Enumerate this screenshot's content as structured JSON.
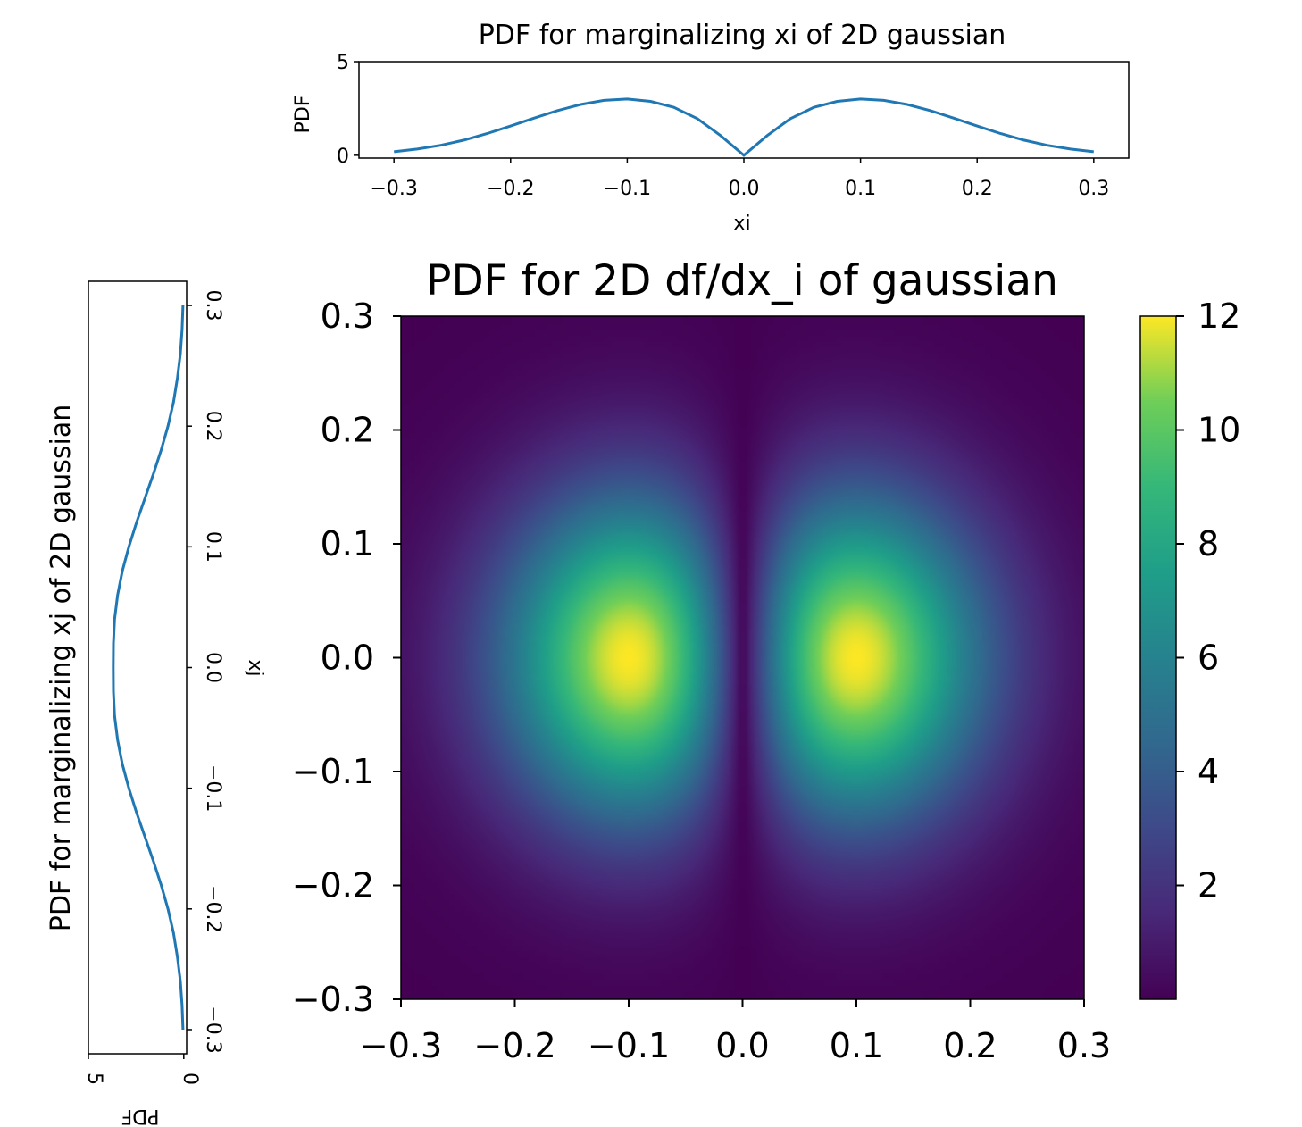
{
  "chart_data": [
    {
      "id": "top-marginal",
      "type": "line",
      "title": "PDF for marginalizing xi of 2D gaussian",
      "xlabel": "xi",
      "ylabel": "PDF",
      "xlim": [
        -0.33,
        0.33
      ],
      "ylim": [
        -0.15,
        5
      ],
      "xticks": [
        "−0.3",
        "−0.2",
        "−0.1",
        "0.0",
        "0.1",
        "0.2",
        "0.3"
      ],
      "yticks": [
        "0",
        "5"
      ],
      "series": [
        {
          "color": "#1f77b4",
          "x": [
            -0.3,
            -0.28,
            -0.26,
            -0.24,
            -0.22,
            -0.2,
            -0.18,
            -0.16,
            -0.14,
            -0.12,
            -0.1,
            -0.08,
            -0.06,
            -0.04,
            -0.02,
            0.0,
            0.02,
            0.04,
            0.06,
            0.08,
            0.1,
            0.12,
            0.14,
            0.16,
            0.18,
            0.2,
            0.22,
            0.24,
            0.26,
            0.28,
            0.3
          ],
          "y": [
            0.19,
            0.33,
            0.53,
            0.81,
            1.16,
            1.56,
            1.98,
            2.38,
            2.71,
            2.93,
            3.0,
            2.88,
            2.56,
            1.96,
            1.05,
            0.0,
            1.05,
            1.96,
            2.56,
            2.88,
            3.0,
            2.93,
            2.71,
            2.38,
            1.98,
            1.56,
            1.16,
            0.81,
            0.53,
            0.33,
            0.19
          ]
        }
      ]
    },
    {
      "id": "left-marginal",
      "type": "line",
      "orientation": "rotated",
      "title": "PDF for marginalizing xj of 2D gaussian",
      "xlabel": "PDF",
      "ylabel": "xj",
      "xlim": [
        5,
        -0.15
      ],
      "ylim": [
        -0.32,
        0.32
      ],
      "xticks": [
        "5",
        "0"
      ],
      "yticks": [
        "−0.3",
        "−0.2",
        "−0.1",
        "0.0",
        "0.1",
        "0.2",
        "0.3"
      ],
      "series": [
        {
          "color": "#1f77b4",
          "xj": [
            -0.3,
            -0.28,
            -0.26,
            -0.24,
            -0.22,
            -0.2,
            -0.18,
            -0.16,
            -0.14,
            -0.12,
            -0.1,
            -0.08,
            -0.06,
            -0.04,
            -0.02,
            0.0,
            0.02,
            0.04,
            0.06,
            0.08,
            0.1,
            0.12,
            0.14,
            0.16,
            0.18,
            0.2,
            0.22,
            0.24,
            0.26,
            0.28,
            0.3
          ],
          "pdf": [
            0.04,
            0.09,
            0.18,
            0.33,
            0.54,
            0.83,
            1.19,
            1.6,
            2.04,
            2.48,
            2.88,
            3.22,
            3.47,
            3.63,
            3.69,
            3.7,
            3.69,
            3.63,
            3.47,
            3.22,
            2.88,
            2.48,
            2.04,
            1.6,
            1.19,
            0.83,
            0.54,
            0.33,
            0.18,
            0.09,
            0.04
          ]
        }
      ]
    },
    {
      "id": "main-heatmap",
      "type": "heatmap",
      "title": "PDF for 2D df/dx_i of gaussian",
      "xlabel": "",
      "ylabel": "",
      "xlim": [
        -0.3,
        0.3
      ],
      "ylim": [
        -0.3,
        0.3
      ],
      "xticks": [
        "−0.3",
        "−0.2",
        "−0.1",
        "0.0",
        "0.1",
        "0.2",
        "0.3"
      ],
      "yticks": [
        "−0.3",
        "−0.2",
        "−0.1",
        "0.0",
        "0.1",
        "0.2",
        "0.3"
      ],
      "colormap": "viridis",
      "value_range": [
        0,
        12
      ],
      "peaks": [
        {
          "x": -0.1,
          "y": 0.0,
          "value": 12
        },
        {
          "x": 0.1,
          "y": 0.0,
          "value": 12
        }
      ],
      "colorbar_ticks": [
        "2",
        "4",
        "6",
        "8",
        "10",
        "12"
      ],
      "colorbar_values": [
        2,
        4,
        6,
        8,
        10,
        12
      ]
    }
  ]
}
